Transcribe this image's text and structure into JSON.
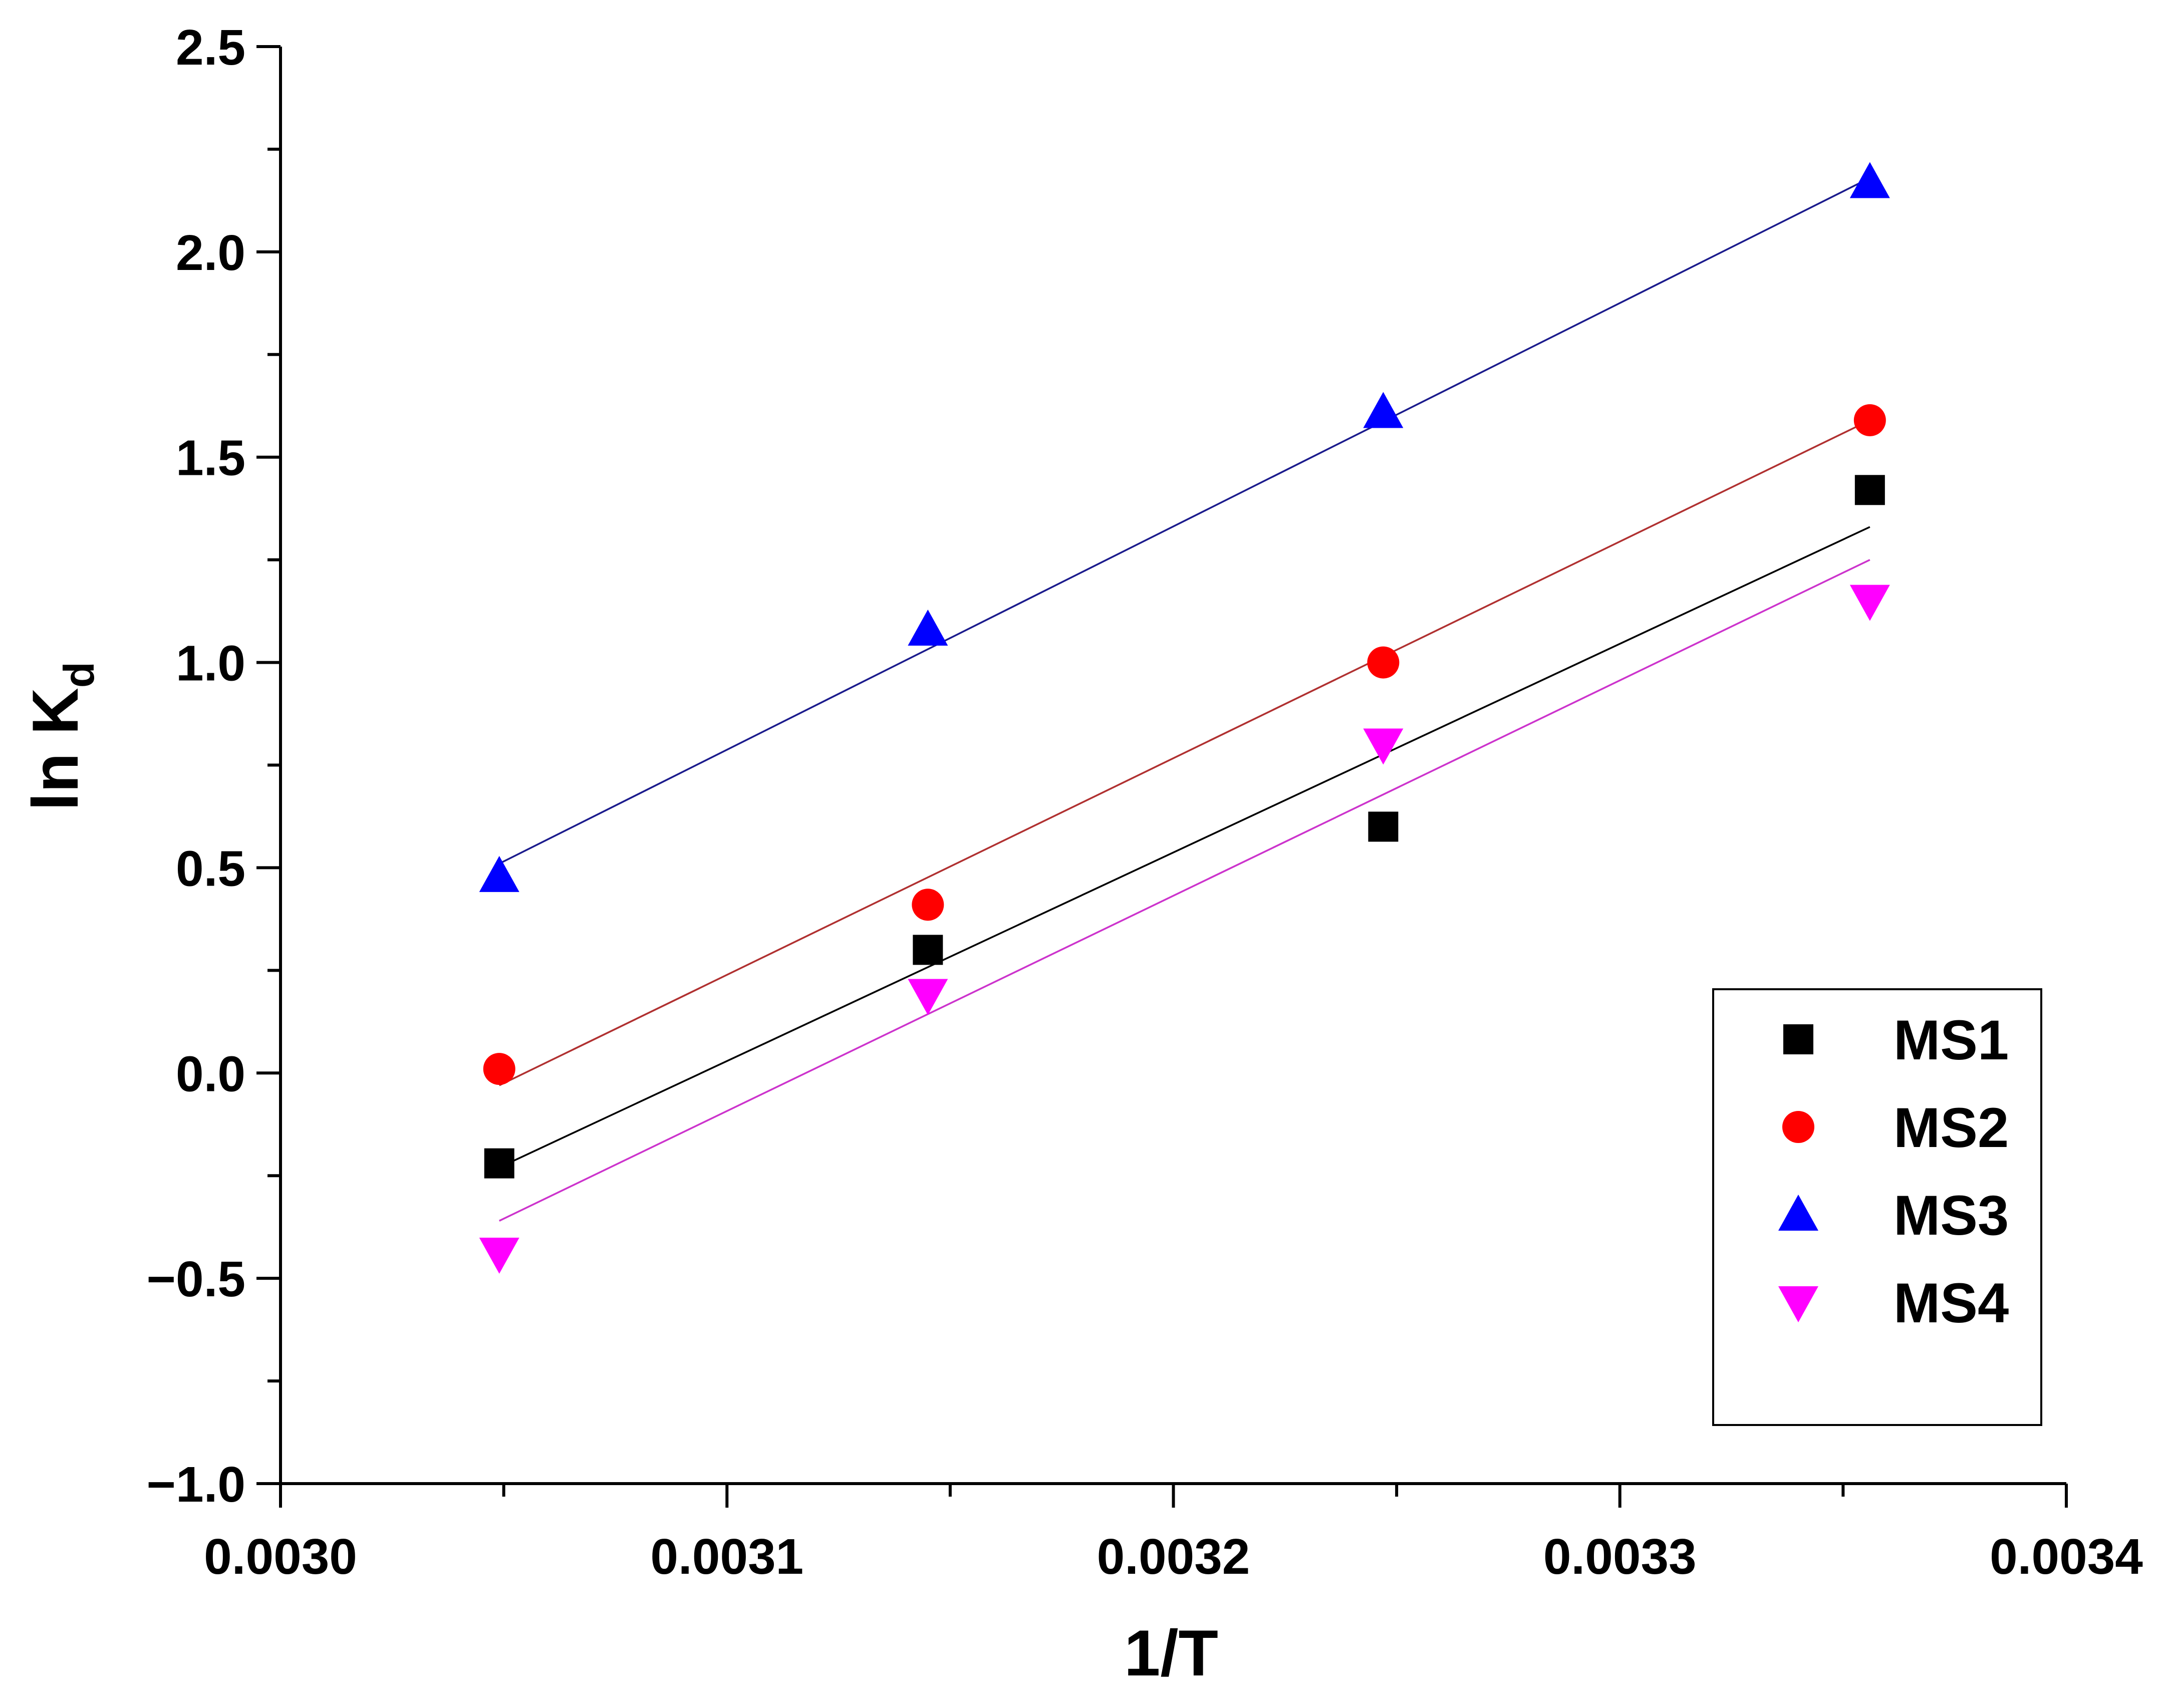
{
  "chart_data": {
    "type": "scatter",
    "title": "",
    "xlabel": "1/T",
    "ylabel": "ln K",
    "ylabel_sub": "d",
    "xlim": [
      0.003,
      0.0034
    ],
    "ylim": [
      -1.0,
      2.5
    ],
    "xticks": [
      {
        "value": 0.003,
        "label": "0.0030"
      },
      {
        "value": 0.0031,
        "label": "0.0031"
      },
      {
        "value": 0.0032,
        "label": "0.0032"
      },
      {
        "value": 0.0033,
        "label": "0.0033"
      },
      {
        "value": 0.0034,
        "label": "0.0034"
      }
    ],
    "xminor": [
      0.00305,
      0.00315,
      0.00325,
      0.00335
    ],
    "yticks": [
      {
        "value": 2.5,
        "label": "2.5"
      },
      {
        "value": 2.0,
        "label": "2.0"
      },
      {
        "value": 1.5,
        "label": "1.5"
      },
      {
        "value": 1.0,
        "label": "1.0"
      },
      {
        "value": 0.5,
        "label": "0.5"
      },
      {
        "value": 0.0,
        "label": "0.0"
      },
      {
        "value": -0.5,
        "label": "−0.5"
      },
      {
        "value": -1.0,
        "label": "−1.0"
      }
    ],
    "yminor": [
      2.25,
      1.75,
      1.25,
      0.75,
      0.25,
      -0.25,
      -0.75
    ],
    "grid": false,
    "legend_position": "bottom-right",
    "series": [
      {
        "name": "MS1",
        "marker": "square",
        "color": "#000000",
        "line_color": "#000000",
        "x": [
          0.003049,
          0.003145,
          0.003247,
          0.003356
        ],
        "y": [
          -0.22,
          0.3,
          0.6,
          1.42
        ],
        "fit": {
          "x": [
            0.003049,
            0.003356
          ],
          "y": [
            -0.23,
            1.33
          ]
        }
      },
      {
        "name": "MS2",
        "marker": "circle",
        "color": "#ff0000",
        "line_color": "#b03030",
        "x": [
          0.003049,
          0.003145,
          0.003247,
          0.003356
        ],
        "y": [
          0.01,
          0.41,
          1.0,
          1.59
        ],
        "fit": {
          "x": [
            0.003049,
            0.003356
          ],
          "y": [
            -0.03,
            1.59
          ]
        }
      },
      {
        "name": "MS3",
        "marker": "triangle-up",
        "color": "#0000ff",
        "line_color": "#1a1a8c",
        "x": [
          0.003049,
          0.003145,
          0.003247,
          0.003356
        ],
        "y": [
          0.48,
          1.08,
          1.61,
          2.17
        ],
        "fit": {
          "x": [
            0.003049,
            0.003356
          ],
          "y": [
            0.51,
            2.18
          ]
        }
      },
      {
        "name": "MS4",
        "marker": "triangle-down",
        "color": "#ff00ff",
        "line_color": "#cc33cc",
        "x": [
          0.003049,
          0.003145,
          0.003247,
          0.003356
        ],
        "y": [
          -0.44,
          0.19,
          0.8,
          1.15
        ],
        "fit": {
          "x": [
            0.003049,
            0.003356
          ],
          "y": [
            -0.36,
            1.25
          ]
        }
      }
    ]
  }
}
